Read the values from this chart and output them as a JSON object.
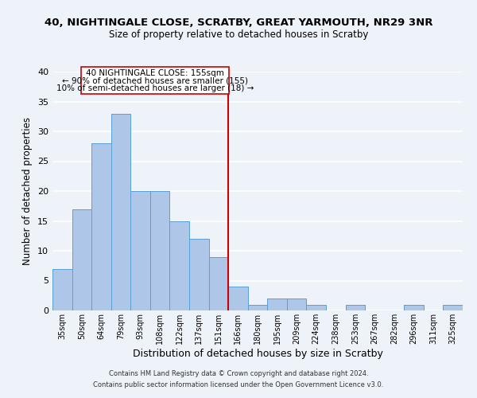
{
  "title": "40, NIGHTINGALE CLOSE, SCRATBY, GREAT YARMOUTH, NR29 3NR",
  "subtitle": "Size of property relative to detached houses in Scratby",
  "xlabel": "Distribution of detached houses by size in Scratby",
  "ylabel": "Number of detached properties",
  "bar_labels": [
    "35sqm",
    "50sqm",
    "64sqm",
    "79sqm",
    "93sqm",
    "108sqm",
    "122sqm",
    "137sqm",
    "151sqm",
    "166sqm",
    "180sqm",
    "195sqm",
    "209sqm",
    "224sqm",
    "238sqm",
    "253sqm",
    "267sqm",
    "282sqm",
    "296sqm",
    "311sqm",
    "325sqm"
  ],
  "bar_values": [
    7,
    17,
    28,
    33,
    20,
    20,
    15,
    12,
    9,
    4,
    1,
    2,
    2,
    1,
    0,
    1,
    0,
    0,
    1,
    0,
    1
  ],
  "bar_color": "#aec6e8",
  "bar_edge_color": "#5a9fd4",
  "vline_x": 8.5,
  "vline_color": "#cc0000",
  "annotation_line1": "40 NIGHTINGALE CLOSE: 155sqm",
  "annotation_line2": "← 90% of detached houses are smaller (155)",
  "annotation_line3": "10% of semi-detached houses are larger (18) →",
  "ylim": [
    0,
    40
  ],
  "yticks": [
    0,
    5,
    10,
    15,
    20,
    25,
    30,
    35,
    40
  ],
  "bg_color": "#eef2f9",
  "grid_color": "#ffffff",
  "footer": "Contains HM Land Registry data © Crown copyright and database right 2024.\nContains public sector information licensed under the Open Government Licence v3.0."
}
